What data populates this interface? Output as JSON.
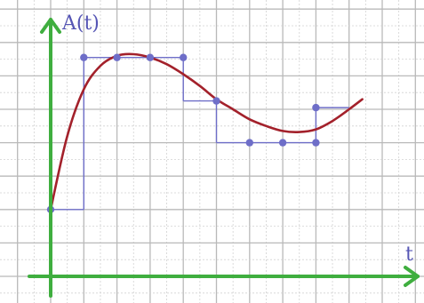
{
  "chart_data": {
    "type": "line",
    "title": "",
    "xlabel": "t",
    "ylabel": "A(t)",
    "grid": true,
    "xlim": [
      0,
      11.5
    ],
    "ylim": [
      -0.2,
      7.6
    ],
    "series": [
      {
        "kind": "curve",
        "points": [
          [
            0,
            2
          ],
          [
            0.5,
            4.2
          ],
          [
            1,
            5.6
          ],
          [
            1.5,
            6.3
          ],
          [
            2,
            6.6
          ],
          [
            2.5,
            6.65
          ],
          [
            3,
            6.55
          ],
          [
            3.5,
            6.35
          ],
          [
            4,
            6.05
          ],
          [
            4.5,
            5.7
          ],
          [
            5,
            5.3
          ],
          [
            5.5,
            5.0
          ],
          [
            6,
            4.7
          ],
          [
            6.5,
            4.5
          ],
          [
            7,
            4.35
          ],
          [
            7.5,
            4.32
          ],
          [
            8,
            4.4
          ],
          [
            8.5,
            4.65
          ],
          [
            9,
            5.0
          ],
          [
            9.4,
            5.3
          ]
        ]
      },
      {
        "kind": "step",
        "intervals": [
          {
            "x0": 0,
            "x1": 1,
            "y": 2
          },
          {
            "x0": 1,
            "x1": 4,
            "y": 6.55
          },
          {
            "x0": 4,
            "x1": 5,
            "y": 5.25
          },
          {
            "x0": 5,
            "x1": 8,
            "y": 4
          },
          {
            "x0": 8,
            "x1": 9,
            "y": 5.05
          }
        ],
        "points": [
          [
            0,
            2
          ],
          [
            1,
            6.55
          ],
          [
            2,
            6.55
          ],
          [
            3,
            6.55
          ],
          [
            4,
            6.55
          ],
          [
            5,
            5.25
          ],
          [
            6,
            4
          ],
          [
            7,
            4
          ],
          [
            8,
            4
          ],
          [
            8,
            5.05
          ]
        ]
      }
    ]
  }
}
